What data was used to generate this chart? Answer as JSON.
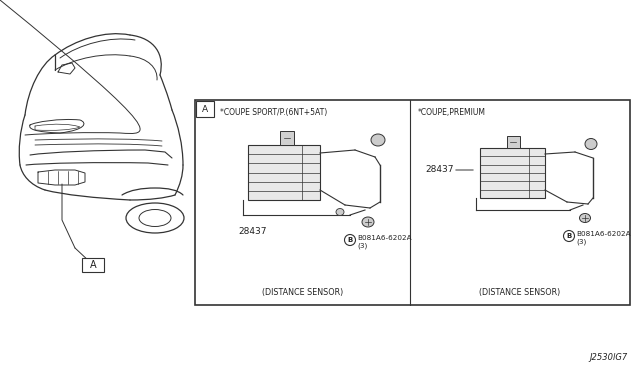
{
  "bg_color": "#ffffff",
  "diagram_title": "J2530lG7",
  "box_label_A": "A",
  "left_section_header": "*COUPE SPORT/P.(6NT+5AT)",
  "right_section_header": "*COUPE,PREMIUM",
  "left_part_number": "28437",
  "right_part_number": "28437",
  "left_bolt_label": "B081A6-6202A\n(3)",
  "right_bolt_label": "B081A6-6202A\n(3)",
  "left_caption": "(DISTANCE SENSOR)",
  "right_caption": "(DISTANCE SENSOR)",
  "car_label_A": "A",
  "font_family": "DejaVu Sans",
  "line_color": "#333333",
  "text_color": "#222222"
}
